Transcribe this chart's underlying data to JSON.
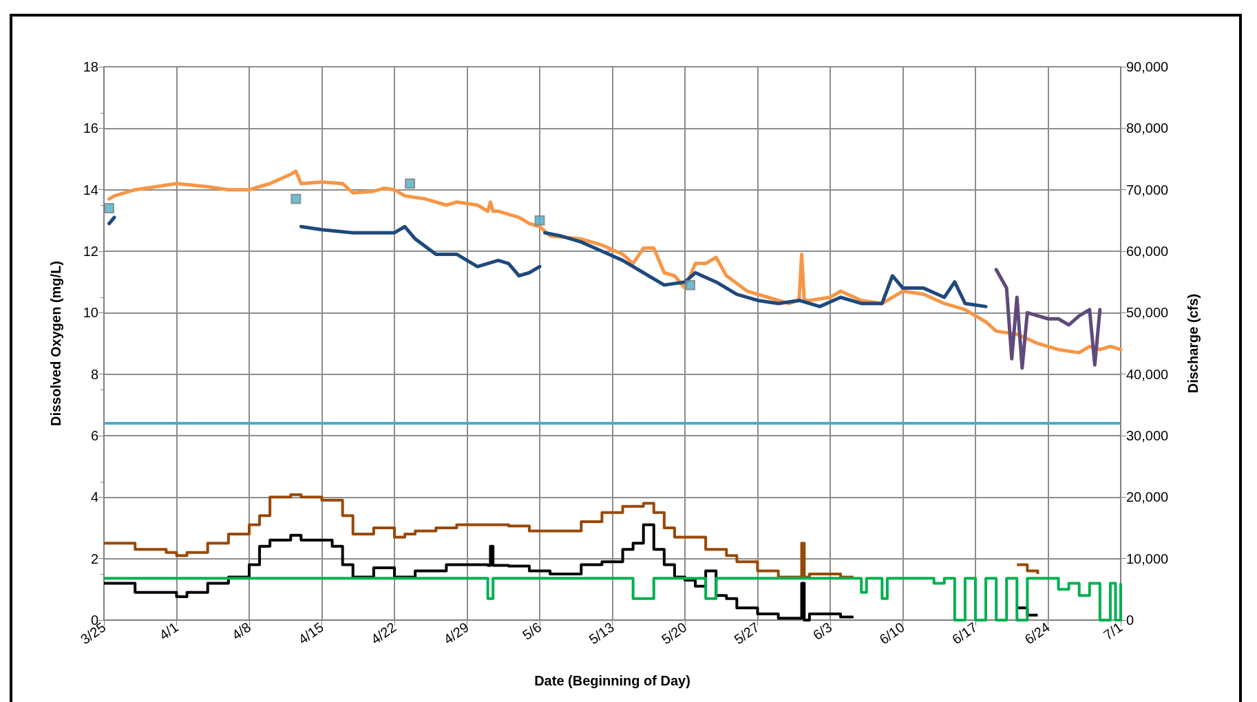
{
  "chart_data": {
    "type": "line",
    "xlabel": "Date (Beginning of Day)",
    "ylabel": "Dissolved Oxygen (mg/L)",
    "y2label": "Discharge (cfs)",
    "grid": true,
    "marker": "none",
    "line_style": "solid",
    "xlim": [
      "--03-25",
      "--07-01"
    ],
    "xticks": [
      {
        "value": "--03-25",
        "label": "3/25"
      },
      {
        "value": "--04-01",
        "label": "4/1"
      },
      {
        "value": "--04-08",
        "label": "4/8"
      },
      {
        "value": "--04-15",
        "label": "4/15"
      },
      {
        "value": "--04-22",
        "label": "4/22"
      },
      {
        "value": "--04-29",
        "label": "4/29"
      },
      {
        "value": "--05-06",
        "label": "5/6"
      },
      {
        "value": "--05-13",
        "label": "5/13"
      },
      {
        "value": "--05-20",
        "label": "5/20"
      },
      {
        "value": "--05-27",
        "label": "5/27"
      },
      {
        "value": "--06-03",
        "label": "6/3"
      },
      {
        "value": "--06-10",
        "label": "6/10"
      },
      {
        "value": "--06-17",
        "label": "6/17"
      },
      {
        "value": "--06-24",
        "label": "6/24"
      },
      {
        "value": "--07-01",
        "label": "7/1"
      }
    ],
    "ylim": [
      0,
      18
    ],
    "yticks": [
      0,
      2,
      4,
      6,
      8,
      10,
      12,
      14,
      16,
      18
    ],
    "y2lim": [
      0,
      90000
    ],
    "y2ticks": [
      0,
      {
        "value": 10000,
        "label": "10,000"
      },
      {
        "value": 20000,
        "label": "20,000"
      },
      {
        "value": 30000,
        "label": "30,000"
      },
      {
        "value": 40000,
        "label": "40,000"
      },
      {
        "value": 50000,
        "label": "50,000"
      },
      {
        "value": 60000,
        "label": "60,000"
      },
      {
        "value": 70000,
        "label": "70,000"
      },
      {
        "value": 80000,
        "label": "80,000"
      },
      {
        "value": 90000,
        "label": "90,000"
      }
    ],
    "ref_lines": [
      {
        "axis": "y",
        "value": 6.4,
        "color": "#4bacc6"
      }
    ],
    "series": [
      {
        "type": "step",
        "axis": "y2",
        "color": "#984807",
        "x": [
          "--03-25",
          "--03-28",
          "--03-31",
          "--04-01",
          "--04-02",
          "--04-04",
          "--04-06",
          "--04-08",
          "--04-09",
          "--04-10",
          "--04-12",
          "--04-13",
          "--04-15",
          "--04-17",
          "--04-18",
          "--04-20",
          "--04-22",
          "--04-23",
          "--04-24",
          "--04-26",
          "--04-28",
          "--04-30",
          "--05-03",
          "--05-05",
          "--05-07",
          "--05-09",
          "--05-10",
          "--05-12",
          "--05-14",
          "--05-16",
          "--05-17",
          "--05-18",
          "--05-19",
          "--05-20",
          "--05-22",
          "--05-24",
          "--05-25",
          "--05-27",
          "--05-29",
          "--05-31",
          "--05-31T06:00",
          "--05-31T12:00",
          "--06-01",
          "--06-03",
          "--06-04",
          "--06-05",
          "--06-05T06:00",
          "--06-21",
          "--06-22",
          "--06-23"
        ],
        "values": [
          12500,
          11500,
          11000,
          10500,
          11000,
          12500,
          14000,
          15500,
          17000,
          20000,
          20400,
          20000,
          19500,
          17000,
          14000,
          15000,
          13500,
          14000,
          14500,
          15000,
          15500,
          15500,
          15300,
          14500,
          14500,
          14500,
          16000,
          17500,
          18500,
          19000,
          17500,
          15000,
          13500,
          13500,
          11500,
          10500,
          9500,
          8000,
          7000,
          7000,
          12500,
          7000,
          7500,
          7500,
          7000,
          7000,
          null,
          9000,
          8000,
          7500
        ]
      },
      {
        "type": "step",
        "axis": "y2",
        "color": "#000000",
        "x": [
          "--03-25",
          "--03-28",
          "--03-31",
          "--04-01",
          "--04-02",
          "--04-04",
          "--04-06",
          "--04-08",
          "--04-09",
          "--04-10",
          "--04-12",
          "--04-13",
          "--04-15",
          "--04-16",
          "--04-17",
          "--04-18",
          "--04-20",
          "--04-22",
          "--04-24",
          "--04-26",
          "--04-27",
          "--04-28",
          "--05-01",
          "--05-01T06:00",
          "--05-01T12:00",
          "--05-03",
          "--05-05",
          "--05-07",
          "--05-09",
          "--05-10",
          "--05-12",
          "--05-14",
          "--05-15",
          "--05-16",
          "--05-17",
          "--05-18",
          "--05-19",
          "--05-20",
          "--05-21",
          "--05-22",
          "--05-23",
          "--05-24",
          "--05-25",
          "--05-27",
          "--05-29",
          "--05-31",
          "--05-31T06:00",
          "--05-31T12:00",
          "--06-01",
          "--06-03",
          "--06-04",
          "--06-05",
          "--06-05T06:00",
          "--06-21",
          "--06-22",
          "--06-23"
        ],
        "values": [
          6000,
          4500,
          4500,
          3800,
          4500,
          6000,
          7000,
          9000,
          12000,
          13000,
          13800,
          13000,
          13000,
          12000,
          9000,
          7000,
          8500,
          7000,
          8000,
          8000,
          9000,
          9000,
          8900,
          12000,
          8900,
          8800,
          8000,
          7500,
          7500,
          9000,
          9500,
          11500,
          12500,
          15500,
          11500,
          9000,
          7000,
          6500,
          5500,
          8000,
          4000,
          3500,
          2000,
          1000,
          300,
          300,
          6000,
          0,
          1000,
          1000,
          500,
          500,
          null,
          2000,
          800,
          800
        ]
      },
      {
        "type": "step",
        "axis": "y2",
        "color": "#00b050",
        "x": [
          "--03-25",
          "--05-01",
          "--05-01T12:00",
          "--05-15",
          "--05-17",
          "--05-22",
          "--05-23",
          "--06-06",
          "--06-06T12:00",
          "--06-08",
          "--06-08T12:00",
          "--06-13",
          "--06-14",
          "--06-15",
          "--06-16",
          "--06-17",
          "--06-18",
          "--06-19",
          "--06-20",
          "--06-21",
          "--06-22",
          "--06-25",
          "--06-26",
          "--06-27",
          "--06-28",
          "--06-29",
          "--06-30",
          "--06-30T12:00",
          "--07-01"
        ],
        "values": [
          6800,
          3500,
          6800,
          3500,
          6800,
          3500,
          6800,
          4500,
          6800,
          3500,
          6800,
          6000,
          6800,
          0,
          6800,
          0,
          6800,
          0,
          6800,
          0,
          6800,
          5000,
          6000,
          4000,
          6000,
          0,
          6000,
          0,
          6000
        ]
      },
      {
        "color": "#f79646",
        "x": [
          "--03-25T12:00",
          "--03-26",
          "--03-28",
          "--03-30",
          "--04-01",
          "--04-04",
          "--04-06",
          "--04-08",
          "--04-10",
          "--04-12",
          "--04-12T12:00",
          "--04-13",
          "--04-15",
          "--04-17",
          "--04-18",
          "--04-20",
          "--04-21",
          "--04-22",
          "--04-23",
          "--04-25",
          "--04-27",
          "--04-28",
          "--04-30",
          "--05-01",
          "--05-01T06:00",
          "--05-01T12:00",
          "--05-02",
          "--05-04",
          "--05-05",
          "--05-06",
          "--05-07",
          "--05-10",
          "--05-12",
          "--05-14",
          "--05-15",
          "--05-16",
          "--05-17",
          "--05-18",
          "--05-19",
          "--05-20",
          "--05-21",
          "--05-22",
          "--05-23",
          "--05-24",
          "--05-26",
          "--05-28",
          "--05-30",
          "--05-31",
          "--05-31T06:00",
          "--05-31T12:00",
          "--06-01",
          "--06-03",
          "--06-04",
          "--06-06",
          "--06-08",
          "--06-10",
          "--06-12",
          "--06-14",
          "--06-16",
          "--06-18",
          "--06-19",
          "--06-21",
          "--06-23",
          "--06-25",
          "--06-27",
          "--06-28",
          "--06-29",
          "--06-30",
          "--07-01"
        ],
        "values": [
          13.7,
          13.8,
          14.0,
          14.1,
          14.2,
          14.1,
          14.0,
          14.0,
          14.2,
          14.5,
          14.6,
          14.2,
          14.25,
          14.2,
          13.9,
          13.95,
          14.05,
          14.0,
          13.8,
          13.7,
          13.5,
          13.6,
          13.5,
          13.3,
          13.6,
          13.3,
          13.3,
          13.1,
          12.9,
          12.8,
          12.5,
          12.4,
          12.2,
          11.9,
          11.6,
          12.1,
          12.1,
          11.3,
          11.2,
          10.8,
          11.6,
          11.6,
          11.8,
          11.2,
          10.7,
          10.5,
          10.3,
          10.4,
          11.9,
          10.4,
          10.4,
          10.5,
          10.7,
          10.4,
          10.3,
          10.7,
          10.6,
          10.3,
          10.1,
          9.7,
          9.4,
          9.3,
          9.0,
          8.8,
          8.7,
          8.9,
          8.8,
          8.9,
          8.8
        ]
      },
      {
        "color": "#1f497d",
        "x": [
          "--03-25T12:00",
          "--03-26",
          "--03-26T06:00",
          "--04-13",
          "--04-15",
          "--04-18",
          "--04-20",
          "--04-22",
          "--04-23",
          "--04-24",
          "--04-26",
          "--04-28",
          "--04-30",
          "--05-02",
          "--05-03",
          "--05-04",
          "--05-05",
          "--05-06",
          "--05-06T06:00",
          "--05-06T12:00",
          "--05-08",
          "--05-10",
          "--05-12",
          "--05-14",
          "--05-16",
          "--05-18",
          "--05-20",
          "--05-21",
          "--05-23",
          "--05-25",
          "--05-27",
          "--05-29",
          "--05-31",
          "--06-02",
          "--06-04",
          "--06-06",
          "--06-08",
          "--06-09",
          "--06-10",
          "--06-12",
          "--06-14",
          "--06-15",
          "--06-16",
          "--06-18"
        ],
        "values": [
          12.9,
          13.1,
          null,
          12.8,
          12.7,
          12.6,
          12.6,
          12.6,
          12.8,
          12.4,
          11.9,
          11.9,
          11.5,
          11.7,
          11.6,
          11.2,
          11.3,
          11.5,
          null,
          12.6,
          12.5,
          12.3,
          12.0,
          11.7,
          11.3,
          10.9,
          11.0,
          11.3,
          11.0,
          10.6,
          10.4,
          10.3,
          10.4,
          10.2,
          10.5,
          10.3,
          10.3,
          11.2,
          10.8,
          10.8,
          10.5,
          11.0,
          10.3,
          10.2
        ]
      },
      {
        "color": "#604a7b",
        "x": [
          "--06-19",
          "--06-20",
          "--06-20T12:00",
          "--06-21",
          "--06-21T12:00",
          "--06-22",
          "--06-24",
          "--06-25",
          "--06-26",
          "--06-27",
          "--06-28",
          "--06-28T12:00",
          "--06-29"
        ],
        "values": [
          11.4,
          10.8,
          8.5,
          10.5,
          8.2,
          10.0,
          9.8,
          9.8,
          9.6,
          9.9,
          10.1,
          8.3,
          10.1
        ]
      },
      {
        "type": "scatter",
        "marker": "square",
        "color": "#4bacc6",
        "x": [
          "--03-25T12:00",
          "--04-12T12:00",
          "--04-23T12:00",
          "--05-06",
          "--05-20T12:00"
        ],
        "values": [
          13.4,
          13.7,
          14.2,
          13.0,
          10.9
        ]
      }
    ]
  }
}
